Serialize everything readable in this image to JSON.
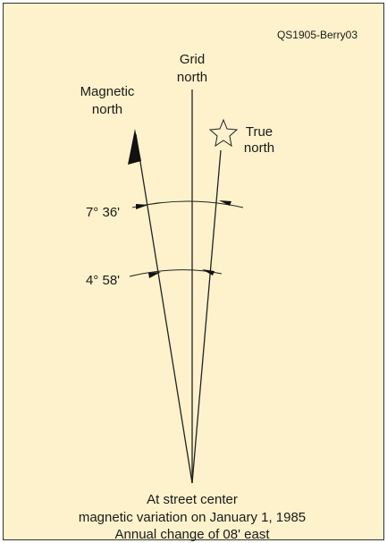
{
  "figure_id": "QS1905-Berry03",
  "grid_north": [
    "Grid",
    "north"
  ],
  "magnetic_north": [
    "Magnetic",
    "north"
  ],
  "true_north": [
    "True",
    "north"
  ],
  "angles": [
    "7° 36'",
    "4° 58'"
  ],
  "caption": [
    "At street center",
    "magnetic variation on January 1, 1985",
    "Annual change of 08' east"
  ]
}
